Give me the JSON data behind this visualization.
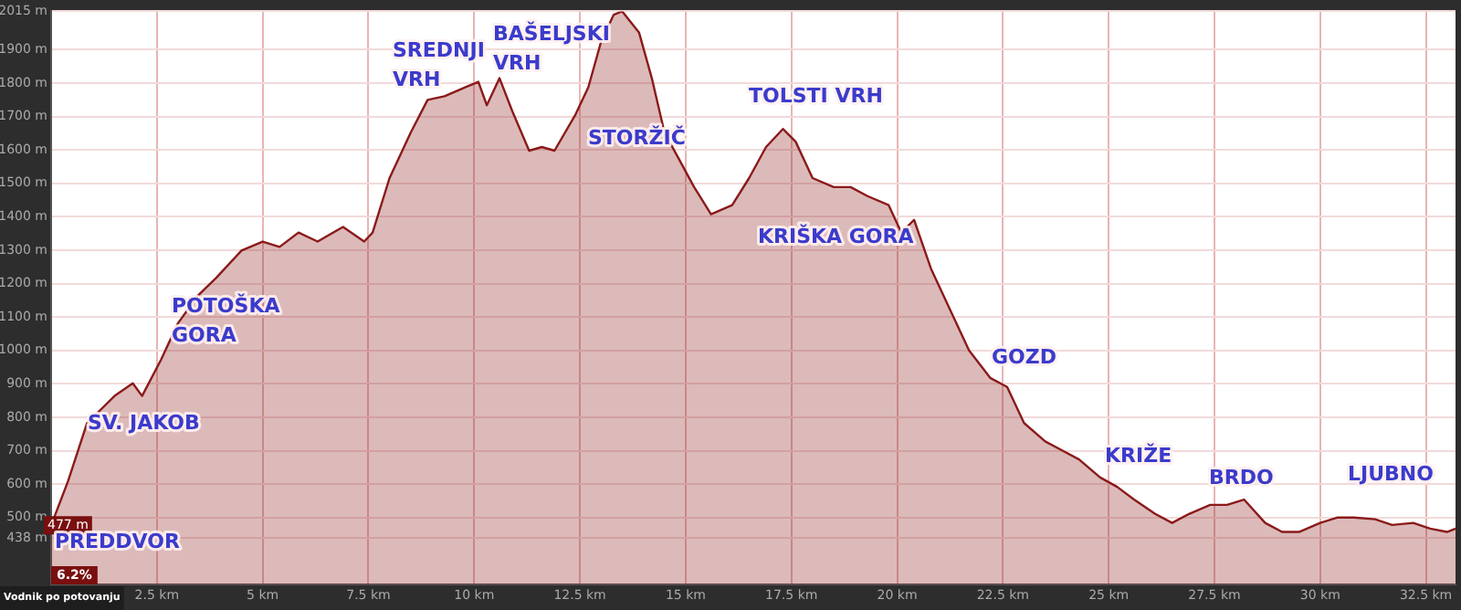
{
  "chart_data": {
    "type": "area",
    "x": [
      0,
      0.4,
      0.85,
      1.5,
      1.93,
      2.15,
      2.6,
      3.0,
      3.46,
      3.9,
      4.5,
      5.0,
      5.4,
      5.85,
      6.3,
      6.9,
      7.4,
      7.6,
      8.0,
      8.5,
      8.9,
      9.3,
      9.8,
      10.1,
      10.3,
      10.6,
      10.9,
      11.3,
      11.6,
      11.9,
      12.4,
      12.7,
      13.0,
      13.3,
      13.5,
      13.9,
      14.2,
      14.5,
      14.85,
      15.2,
      15.6,
      16.1,
      16.5,
      16.9,
      17.3,
      17.6,
      18.0,
      18.5,
      18.9,
      19.3,
      19.8,
      20.1,
      20.4,
      20.8,
      21.3,
      21.7,
      22.2,
      22.6,
      23.0,
      23.5,
      23.9,
      24.3,
      24.8,
      25.2,
      25.6,
      26.1,
      26.5,
      26.9,
      27.4,
      27.8,
      28.2,
      28.7,
      29.1,
      29.5,
      30.0,
      30.4,
      30.8,
      31.3,
      31.7,
      32.2,
      32.6,
      33.0,
      33.2
    ],
    "series": [
      {
        "color": "#8b1a1a",
        "values": [
          477,
          609,
          783,
          864,
          902,
          864,
          973,
          1082,
          1163,
          1217,
          1299,
          1326,
          1310,
          1353,
          1326,
          1370,
          1326,
          1353,
          1516,
          1652,
          1750,
          1761,
          1788,
          1804,
          1734,
          1815,
          1717,
          1598,
          1609,
          1598,
          1707,
          1788,
          1924,
          2005,
          2015,
          1951,
          1815,
          1652,
          1571,
          1489,
          1408,
          1435,
          1516,
          1609,
          1663,
          1625,
          1516,
          1489,
          1489,
          1462,
          1435,
          1353,
          1391,
          1245,
          1109,
          1000,
          918,
          891,
          783,
          728,
          701,
          674,
          620,
          592,
          554,
          511,
          484,
          511,
          538,
          538,
          554,
          484,
          457,
          457,
          484,
          500,
          500,
          495,
          478,
          484,
          467,
          457,
          467
        ]
      }
    ],
    "xlim": [
      0,
      33.2
    ],
    "ylim": [
      300,
      2015
    ],
    "xticks": [
      {
        "value": 2.5,
        "label": "2.5 km"
      },
      {
        "value": 5,
        "label": "5 km"
      },
      {
        "value": 7.5,
        "label": "7.5 km"
      },
      {
        "value": 10,
        "label": "10 km"
      },
      {
        "value": 12.5,
        "label": "12.5 km"
      },
      {
        "value": 15,
        "label": "15 km"
      },
      {
        "value": 17.5,
        "label": "17.5 km"
      },
      {
        "value": 20,
        "label": "20 km"
      },
      {
        "value": 22.5,
        "label": "22.5 km"
      },
      {
        "value": 25,
        "label": "25 km"
      },
      {
        "value": 27.5,
        "label": "27.5 km"
      },
      {
        "value": 30,
        "label": "30 km"
      },
      {
        "value": 32.5,
        "label": "32.5 km"
      }
    ],
    "yticks": [
      {
        "value": 438,
        "label": "438 m"
      },
      {
        "value": 500,
        "label": "500 m"
      },
      {
        "value": 600,
        "label": "600 m"
      },
      {
        "value": 700,
        "label": "700 m"
      },
      {
        "value": 800,
        "label": "800 m"
      },
      {
        "value": 900,
        "label": "900 m"
      },
      {
        "value": 1000,
        "label": "1000 m"
      },
      {
        "value": 1100,
        "label": "1100 m"
      },
      {
        "value": 1200,
        "label": "1200 m"
      },
      {
        "value": 1300,
        "label": "1300 m"
      },
      {
        "value": 1400,
        "label": "1400 m"
      },
      {
        "value": 1500,
        "label": "1500 m"
      },
      {
        "value": 1600,
        "label": "1600 m"
      },
      {
        "value": 1700,
        "label": "1700 m"
      },
      {
        "value": 1800,
        "label": "1800 m"
      },
      {
        "value": 1900,
        "label": "1900 m"
      },
      {
        "value": 2015,
        "label": "2015 m"
      }
    ],
    "grid": true,
    "legend": false,
    "annotations": [
      {
        "text": "477 m",
        "x": 0,
        "y": 477
      },
      "6.2%",
      "Vodnik po potovanju",
      "PREDDVOR",
      "SV. JAKOB",
      "POTOŠKA\nGORA",
      "SREDNJI\nVRH",
      "BAŠELJSKI\nVRH",
      "STORŽIČ",
      "TOLSTI VRH",
      "KRIŠKA GORA",
      "GOZD",
      "KRIŽE",
      "BRDO",
      "LJUBNO"
    ]
  }
}
